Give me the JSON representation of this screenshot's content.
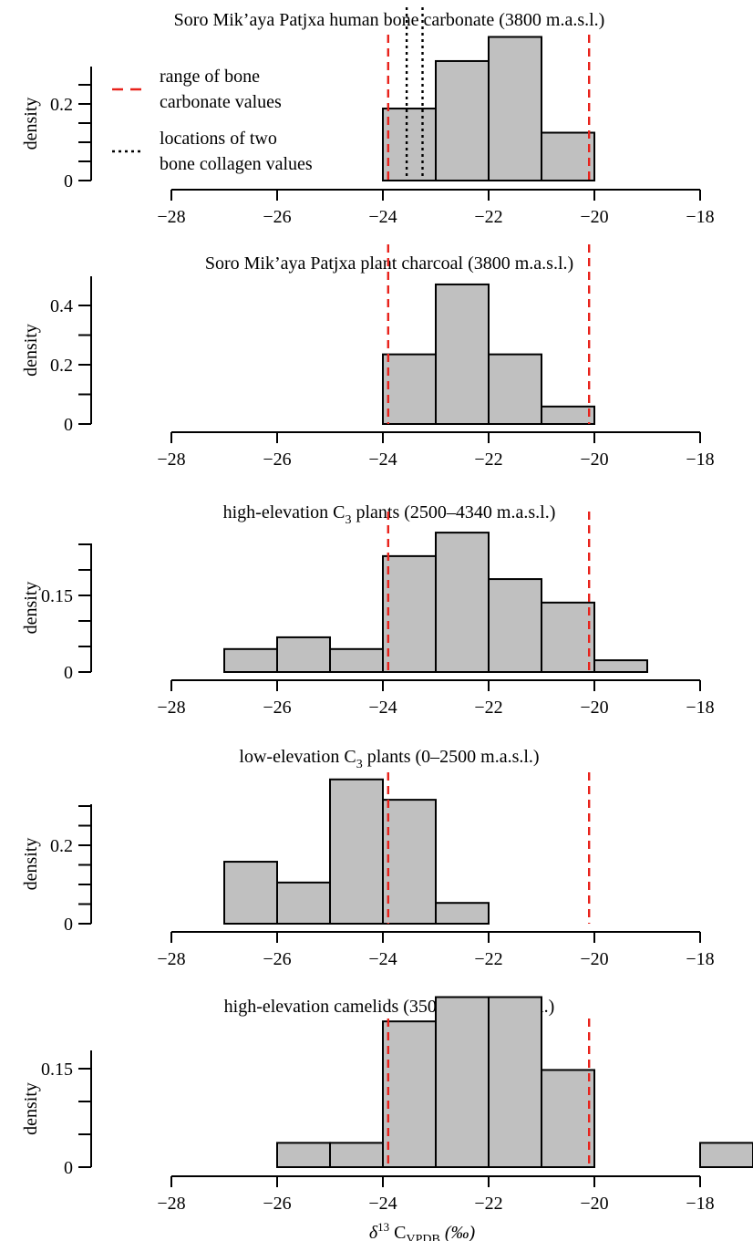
{
  "chart_data": [
    {
      "type": "bar",
      "title": "Soro Mik’aya Patjxa human bone carbonate (3800 m.a.s.l.)",
      "ylabel": "density",
      "xlim": [
        -28,
        -18
      ],
      "ylim": [
        0,
        0.3
      ],
      "xticks": [
        -28,
        -26,
        -24,
        -22,
        -20,
        -18
      ],
      "xtick_labels": [
        "−28",
        "−26",
        "−24",
        "−22",
        "−20",
        "−18"
      ],
      "yticks": [
        0,
        0.2
      ],
      "ytick_labels": [
        "0",
        "0.2"
      ],
      "bins": [
        [
          -24,
          -23
        ],
        [
          -23,
          -22
        ],
        [
          -22,
          -21
        ],
        [
          -21,
          -20
        ]
      ],
      "values": [
        0.188,
        0.312,
        0.375,
        0.125
      ],
      "red_lines": [
        -23.9,
        -20.1
      ],
      "black_dotted_lines": [
        -23.55,
        -23.25
      ],
      "legend": {
        "placement": "top-left",
        "items": [
          {
            "style": "red-dashed",
            "label_lines": [
              "range of bone",
              "carbonate values"
            ]
          },
          {
            "style": "black-dotted",
            "label_lines": [
              "locations of two",
              "bone collagen values"
            ]
          }
        ]
      }
    },
    {
      "type": "bar",
      "title": "Soro Mik’aya Patjxa plant charcoal (3800 m.a.s.l.)",
      "ylabel": "density",
      "xlim": [
        -28,
        -18
      ],
      "ylim": [
        0,
        0.5
      ],
      "xticks": [
        -28,
        -26,
        -24,
        -22,
        -20,
        -18
      ],
      "xtick_labels": [
        "−28",
        "−26",
        "−24",
        "−22",
        "−20",
        "−18"
      ],
      "yticks": [
        0,
        0.2,
        0.4
      ],
      "ytick_labels": [
        "0",
        "0.2",
        "0.4"
      ],
      "bins": [
        [
          -24,
          -23
        ],
        [
          -23,
          -22
        ],
        [
          -22,
          -21
        ],
        [
          -21,
          -20
        ]
      ],
      "values": [
        0.235,
        0.471,
        0.235,
        0.059
      ],
      "red_lines": [
        -23.9,
        -20.1
      ]
    },
    {
      "type": "bar",
      "title": "high-elevation C₃ plants (2500–4340 m.a.s.l.)",
      "title_parts": {
        "before": "high-elevation C",
        "sub": "3",
        "after": " plants (2500–4340 m.a.s.l.)"
      },
      "ylabel": "density",
      "xlim": [
        -28,
        -18
      ],
      "ylim": [
        0,
        0.3
      ],
      "xticks": [
        -28,
        -26,
        -24,
        -22,
        -20,
        -18
      ],
      "xtick_labels": [
        "−28",
        "−26",
        "−24",
        "−22",
        "−20",
        "−18"
      ],
      "yticks": [
        0,
        0.15
      ],
      "ytick_labels": [
        "0",
        "0.15"
      ],
      "bins": [
        [
          -27,
          -26
        ],
        [
          -26,
          -25
        ],
        [
          -25,
          -24
        ],
        [
          -24,
          -23
        ],
        [
          -23,
          -22
        ],
        [
          -22,
          -21
        ],
        [
          -21,
          -20
        ],
        [
          -20,
          -19
        ]
      ],
      "values": [
        0.045,
        0.068,
        0.045,
        0.227,
        0.273,
        0.182,
        0.136,
        0.023
      ],
      "red_lines": [
        -23.9,
        -20.1
      ]
    },
    {
      "type": "bar",
      "title": "low-elevation C₃ plants (0–2500 m.a.s.l.)",
      "title_parts": {
        "before": "low-elevation C",
        "sub": "3",
        "after": " plants (0–2500 m.a.s.l.)"
      },
      "ylabel": "density",
      "xlim": [
        -28,
        -18
      ],
      "ylim": [
        0,
        0.3
      ],
      "xticks": [
        -28,
        -26,
        -24,
        -22,
        -20,
        -18
      ],
      "xtick_labels": [
        "−28",
        "−26",
        "−24",
        "−22",
        "−20",
        "−18"
      ],
      "yticks": [
        0,
        0.2
      ],
      "ytick_labels": [
        "0",
        "0.2"
      ],
      "bins": [
        [
          -27,
          -26
        ],
        [
          -26,
          -25
        ],
        [
          -25,
          -24
        ],
        [
          -24,
          -23
        ],
        [
          -23,
          -22
        ]
      ],
      "values": [
        0.158,
        0.105,
        0.368,
        0.316,
        0.053
      ],
      "red_lines": [
        -23.9,
        -20.1
      ]
    },
    {
      "type": "bar",
      "title": "high-elevation camelids (3500–4000 m.a.s.l.)",
      "ylabel": "density",
      "xlabel_parts": {
        "delta": "δ",
        "sup": "13",
        "c": "C",
        "sub": "VPDB",
        "unit": "(‰)"
      },
      "xlim": [
        -28,
        -18
      ],
      "ylim": [
        0,
        0.3
      ],
      "xticks": [
        -28,
        -26,
        -24,
        -22,
        -20,
        -18
      ],
      "xtick_labels": [
        "−28",
        "−26",
        "−24",
        "−22",
        "−20",
        "−18"
      ],
      "yticks": [
        0,
        0.15
      ],
      "ytick_labels": [
        "0",
        "0.15"
      ],
      "bins": [
        [
          -26,
          -25
        ],
        [
          -25,
          -24
        ],
        [
          -24,
          -23
        ],
        [
          -23,
          -22
        ],
        [
          -22,
          -21
        ],
        [
          -21,
          -20
        ],
        [
          -18,
          -17
        ]
      ],
      "values": [
        0.037,
        0.037,
        0.222,
        0.259,
        0.259,
        0.148,
        0.037
      ],
      "red_lines": [
        -23.9,
        -20.1
      ]
    }
  ],
  "colors": {
    "bar_fill": "#c0c0c0",
    "bar_stroke": "#000000",
    "red_line": "#e8221b",
    "axis": "#000000"
  }
}
